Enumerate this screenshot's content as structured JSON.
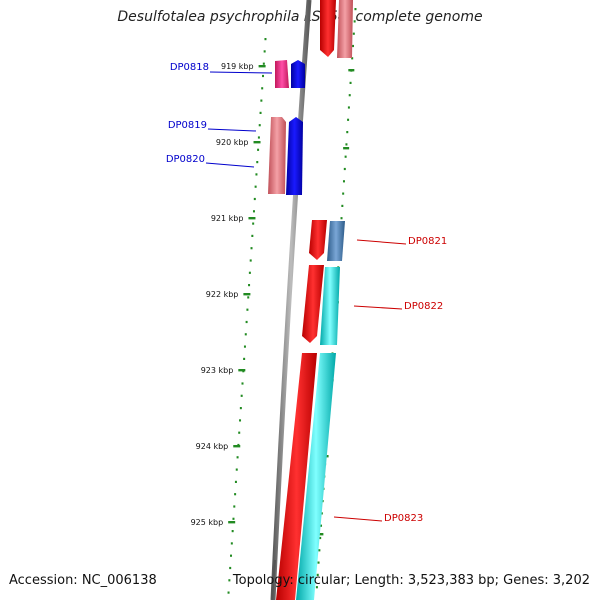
{
  "title": "Desulfotalea psychrophila LSv54, complete genome",
  "footer": {
    "accession": "Accession: NC_006138",
    "topology": "Topology: circular; Length: 3,523,383 bp; Genes: 3,202"
  },
  "colors": {
    "scale_dots": "#228b22",
    "backbone": "#808080",
    "forward_label": "#0000cc",
    "reverse_label": "#cc0000"
  },
  "scale_ticks": [
    {
      "label": "919 kbp"
    },
    {
      "label": "920 kbp"
    },
    {
      "label": "921 kbp"
    },
    {
      "label": "922 kbp"
    },
    {
      "label": "923 kbp"
    },
    {
      "label": "924 kbp"
    },
    {
      "label": "925 kbp"
    }
  ],
  "genes": [
    {
      "id": "DP0818",
      "strand": "forward",
      "label": "DP0818"
    },
    {
      "id": "DP0819",
      "strand": "forward",
      "label": "DP0819"
    },
    {
      "id": "DP0820",
      "strand": "forward",
      "label": "DP0820"
    },
    {
      "id": "DP0821",
      "strand": "reverse",
      "label": "DP0821"
    },
    {
      "id": "DP0822",
      "strand": "reverse",
      "label": "DP0822"
    },
    {
      "id": "DP0823",
      "strand": "reverse",
      "label": "DP0823"
    }
  ]
}
